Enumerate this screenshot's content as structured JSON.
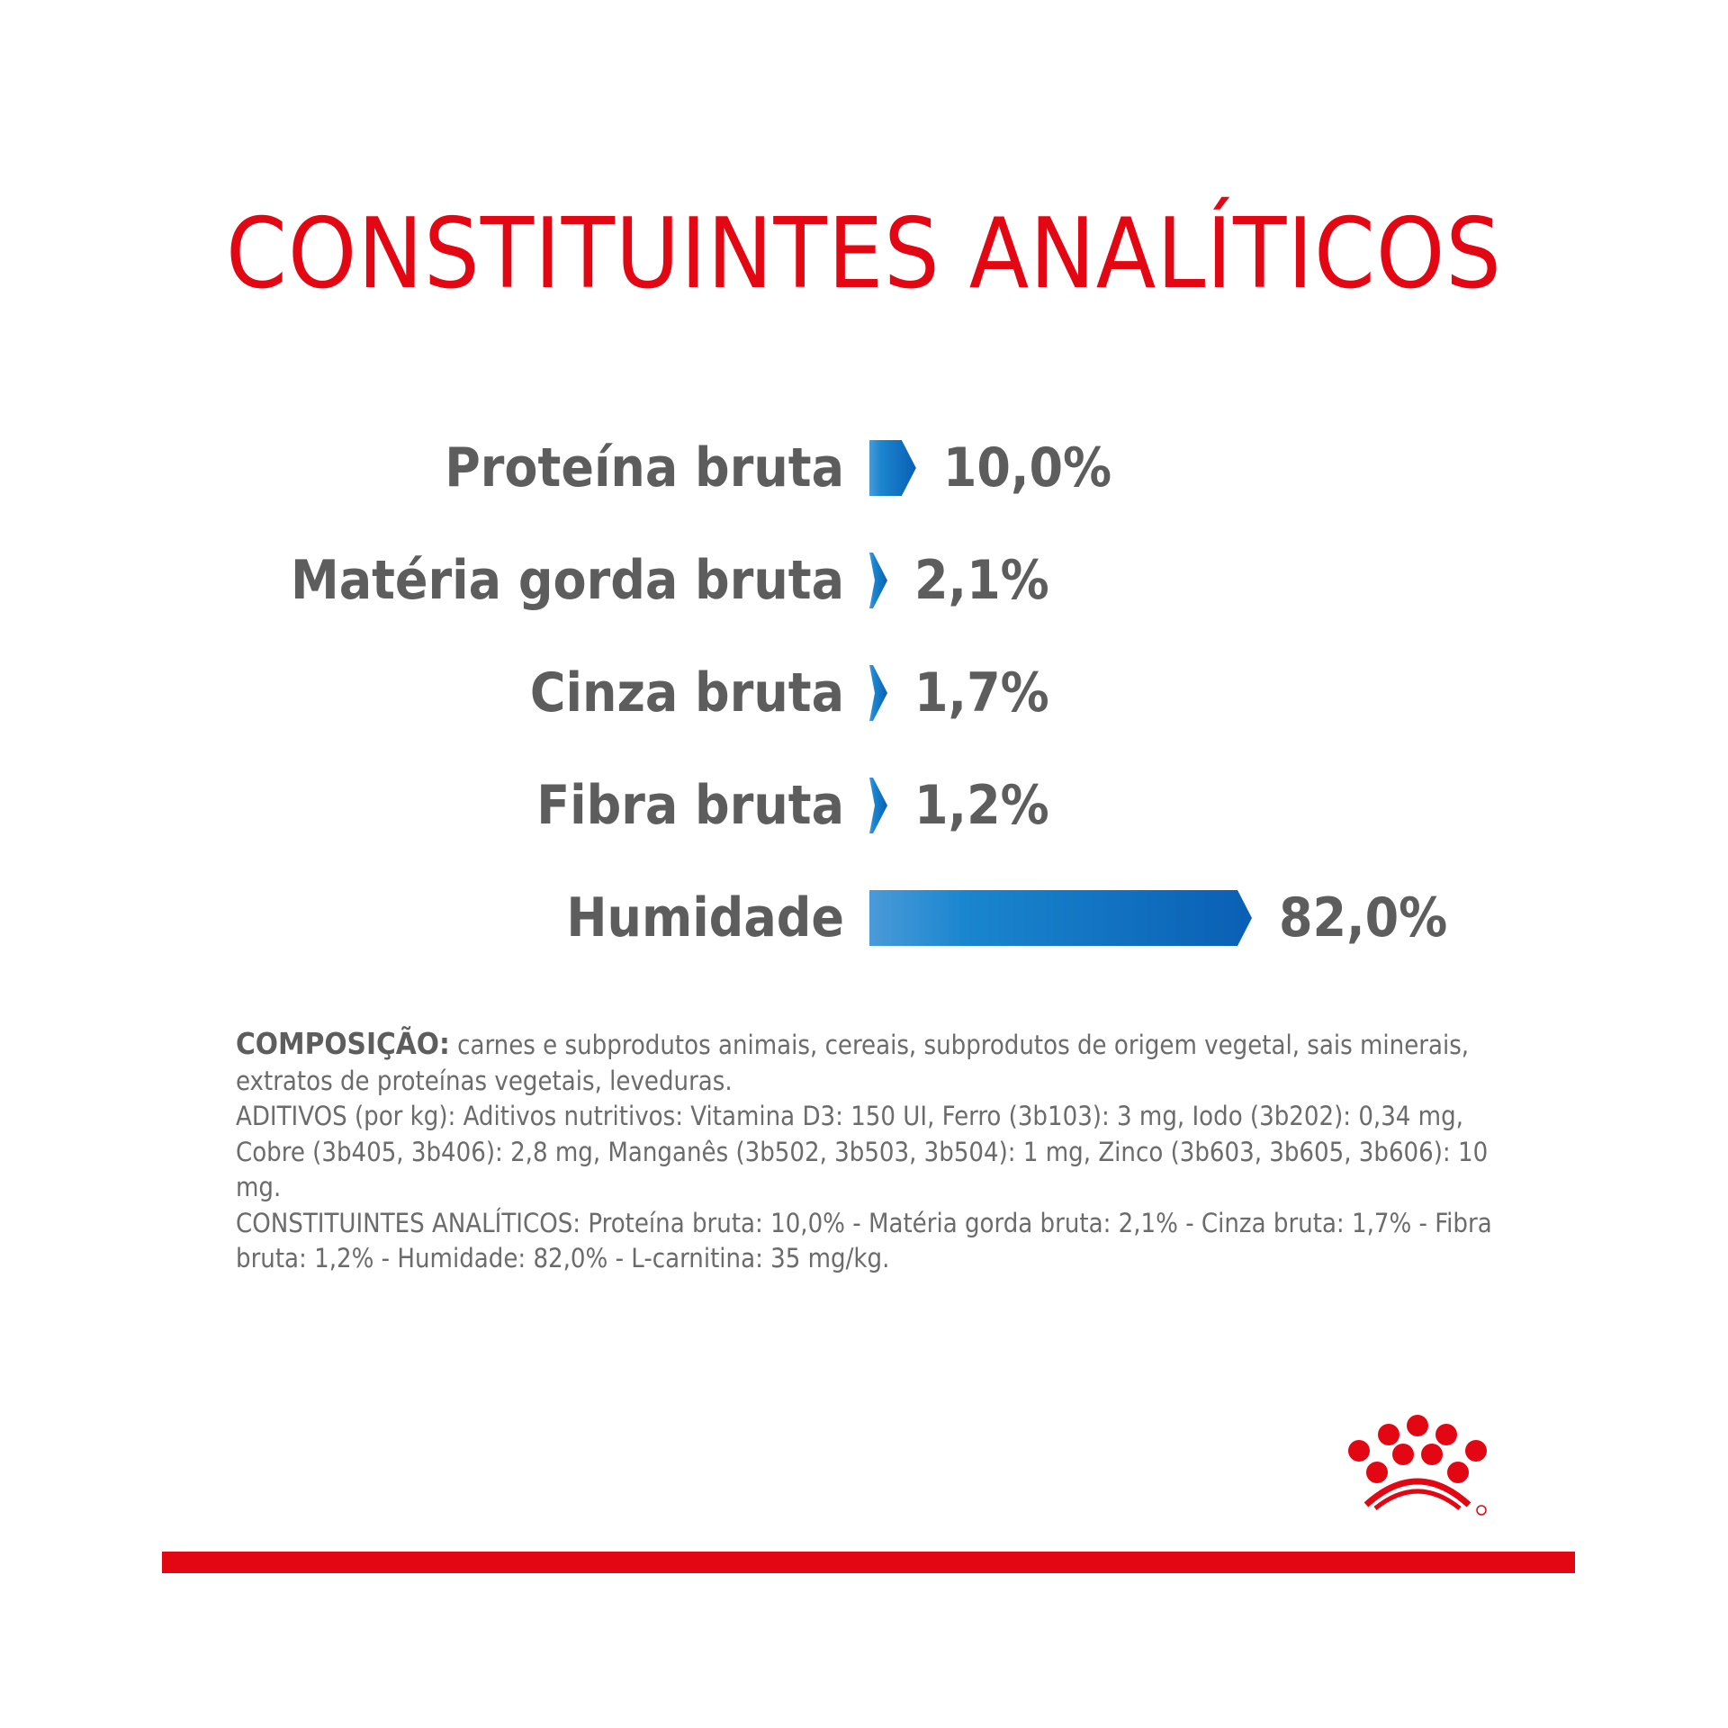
{
  "title": "CONSTITUINTES ANALÍTICOS",
  "colors": {
    "accent_red": "#e30613",
    "bar_blue_dark": "#0a5fb4",
    "bar_blue_light": "#3aa0dc",
    "text_gray": "#5d5d5d"
  },
  "chart_data": {
    "type": "bar",
    "orientation": "horizontal",
    "title": "CONSTITUINTES ANALÍTICOS",
    "categories": [
      "Proteína bruta",
      "Matéria gorda bruta",
      "Cinza bruta",
      "Fibra bruta",
      "Humidade"
    ],
    "values": [
      10.0,
      2.1,
      1.7,
      1.2,
      82.0
    ],
    "value_labels": [
      "10,0%",
      "2,1%",
      "1,7%",
      "1,2%",
      "82,0%"
    ],
    "unit": "%",
    "xlim": [
      0,
      82.0
    ]
  },
  "composition": {
    "heading": "COMPOSIÇÃO:",
    "ingredients": " carnes e subprodutos animais, cereais, subprodutos de origem vegetal, sais minerais, extratos de proteínas vegetais, leveduras.",
    "additives": "ADITIVOS (por kg): Aditivos nutritivos: Vitamina D3: 150 UI, Ferro (3b103): 3 mg, Iodo (3b202): 0,34 mg, Cobre (3b405, 3b406): 2,8 mg, Manganês (3b502, 3b503, 3b504): 1 mg, Zinco (3b603, 3b605, 3b606): 10 mg.",
    "constituents": "CONSTITUINTES ANALÍTICOS: Proteína bruta: 10,0% - Matéria gorda bruta: 2,1% - Cinza bruta: 1,7% - Fibra bruta: 1,2% - Humidade: 82,0% - L-carnitina: 35 mg/kg."
  },
  "logo": {
    "icon": "royal-canin-crown-icon"
  }
}
